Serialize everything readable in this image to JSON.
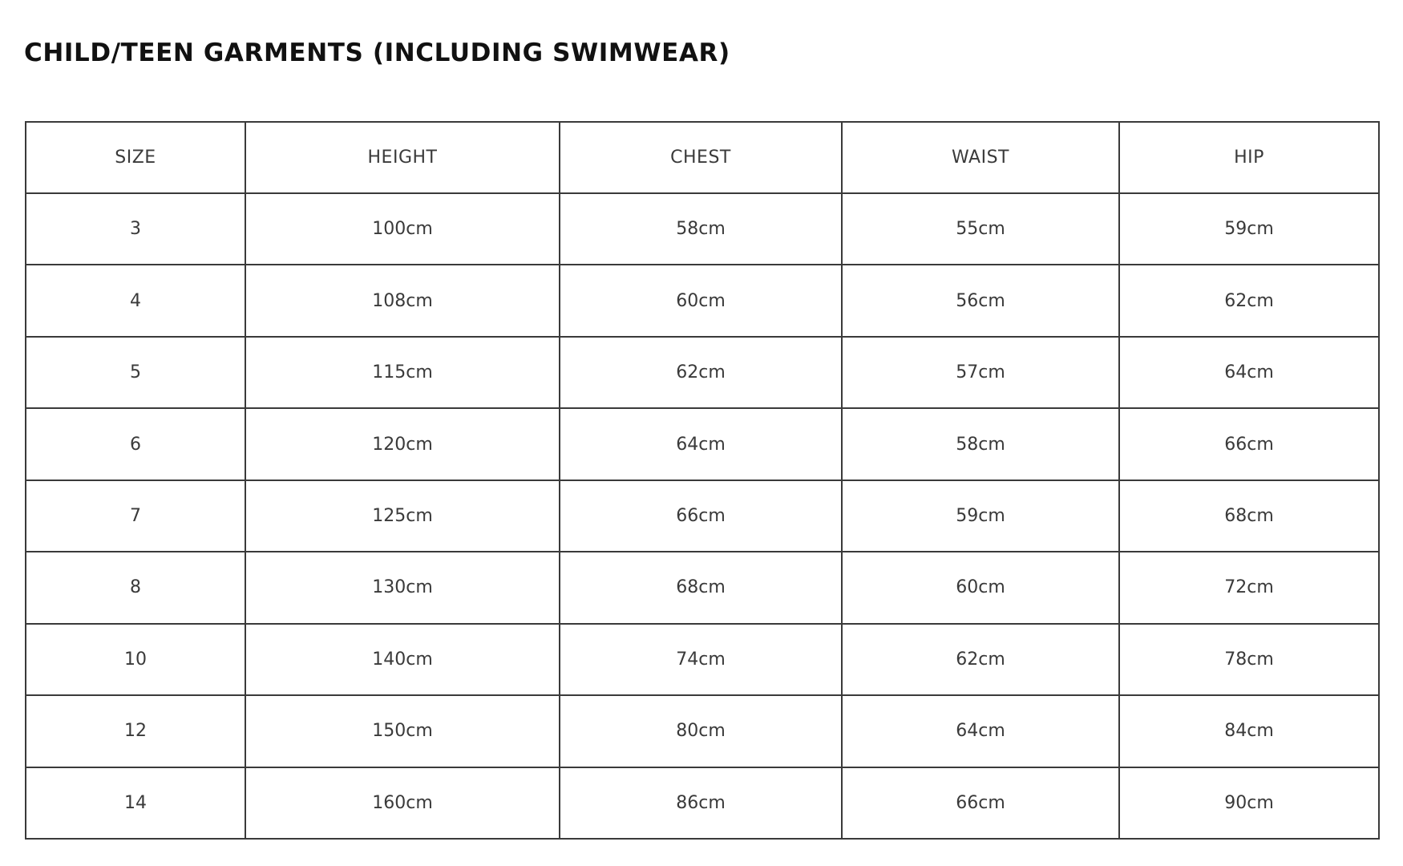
{
  "title": "CHILD/TEEN GARMENTS (INCLUDING SWIMWEAR)",
  "table": {
    "headers": [
      "SIZE",
      "HEIGHT",
      "CHEST",
      "WAIST",
      "HIP"
    ],
    "rows": [
      [
        "3",
        "100cm",
        "58cm",
        "55cm",
        "59cm"
      ],
      [
        "4",
        "108cm",
        "60cm",
        "56cm",
        "62cm"
      ],
      [
        "5",
        "115cm",
        "62cm",
        "57cm",
        "64cm"
      ],
      [
        "6",
        "120cm",
        "64cm",
        "58cm",
        "66cm"
      ],
      [
        "7",
        "125cm",
        "66cm",
        "59cm",
        "68cm"
      ],
      [
        "8",
        "130cm",
        "68cm",
        "60cm",
        "72cm"
      ],
      [
        "10",
        "140cm",
        "74cm",
        "62cm",
        "78cm"
      ],
      [
        "12",
        "150cm",
        "80cm",
        "64cm",
        "84cm"
      ],
      [
        "14",
        "160cm",
        "86cm",
        "66cm",
        "90cm"
      ]
    ]
  }
}
